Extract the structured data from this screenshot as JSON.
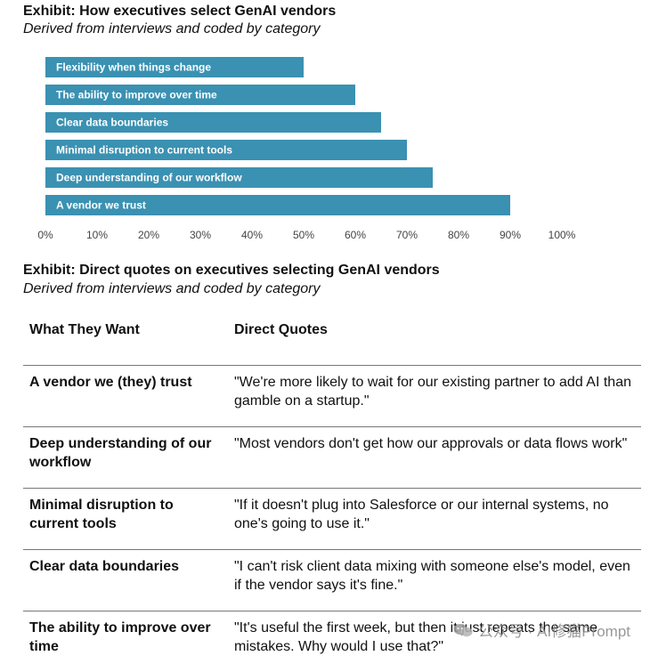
{
  "exhibit1": {
    "title": "Exhibit: How executives select GenAI vendors",
    "subtitle": "Derived from interviews and coded by category"
  },
  "chart_data": {
    "type": "bar",
    "orientation": "horizontal",
    "categories": [
      "Flexibility when things change",
      "The ability to improve over time",
      "Clear data boundaries",
      "Minimal disruption to current tools",
      "Deep understanding of our workflow",
      "A vendor we trust"
    ],
    "values": [
      50,
      60,
      65,
      70,
      75,
      90
    ],
    "x_ticks": [
      "0%",
      "10%",
      "20%",
      "30%",
      "40%",
      "50%",
      "60%",
      "70%",
      "80%",
      "90%",
      "100%"
    ],
    "xlim": [
      0,
      100
    ],
    "grid": false,
    "bar_color": "#3a91b2",
    "label_position": "inside-left"
  },
  "exhibit2": {
    "title": "Exhibit: Direct quotes on executives selecting GenAI vendors",
    "subtitle": "Derived from interviews and coded by category"
  },
  "table": {
    "headers": [
      "What They Want",
      "Direct Quotes"
    ],
    "rows": [
      {
        "want": "A vendor we (they) trust",
        "quote": "\"We're more likely to wait for our existing partner to add AI than gamble on a startup.\""
      },
      {
        "want": "Deep understanding of our workflow",
        "quote": "\"Most vendors don't get how our approvals or data flows work\""
      },
      {
        "want": "Minimal disruption to current tools",
        "quote": "\"If it doesn't plug into Salesforce or our internal systems, no one's going to use it.\""
      },
      {
        "want": "Clear data boundaries",
        "quote": "\"I can't risk client data mixing with someone else's model, even if the vendor says it's fine.\""
      },
      {
        "want": "The ability to improve over time",
        "quote": "\"It's useful the first week, but then it just repeats the same mistakes. Why would I use that?\""
      }
    ]
  },
  "watermark": {
    "icon": "wechat-icon",
    "text": "公众号 · AI修猫Prompt"
  }
}
